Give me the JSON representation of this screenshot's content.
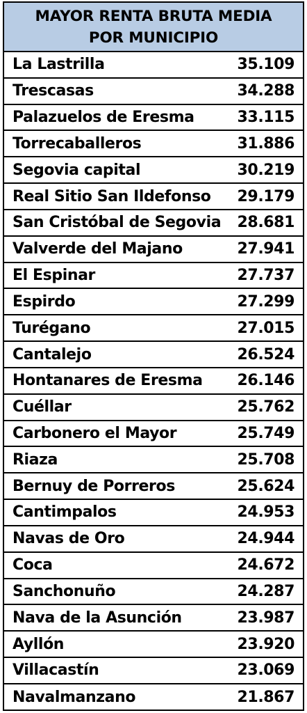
{
  "header": {
    "line1": "MAYOR RENTA BRUTA MEDIA",
    "line2": "POR MUNICIPIO"
  },
  "rows": [
    {
      "name": "La Lastrilla",
      "value": "35.109"
    },
    {
      "name": "Trescasas",
      "value": "34.288"
    },
    {
      "name": "Palazuelos de Eresma",
      "value": "33.115"
    },
    {
      "name": "Torrecaballeros",
      "value": "31.886"
    },
    {
      "name": "Segovia capital",
      "value": "30.219"
    },
    {
      "name": "Real Sitio San Ildefonso",
      "value": "29.179"
    },
    {
      "name": "San Cristóbal de Segovia",
      "value": "28.681"
    },
    {
      "name": "Valverde del Majano",
      "value": "27.941"
    },
    {
      "name": "El Espinar",
      "value": "27.737"
    },
    {
      "name": "Espirdo",
      "value": "27.299"
    },
    {
      "name": "Turégano",
      "value": "27.015"
    },
    {
      "name": "Cantalejo",
      "value": "26.524"
    },
    {
      "name": "Hontanares de Eresma",
      "value": "26.146"
    },
    {
      "name": "Cuéllar",
      "value": "25.762"
    },
    {
      "name": "Carbonero el Mayor",
      "value": "25.749"
    },
    {
      "name": "Riaza",
      "value": "25.708"
    },
    {
      "name": "Bernuy de Porreros",
      "value": "25.624"
    },
    {
      "name": "Cantimpalos",
      "value": "24.953"
    },
    {
      "name": "Navas de Oro",
      "value": "24.944"
    },
    {
      "name": "Coca",
      "value": "24.672"
    },
    {
      "name": "Sanchonuño",
      "value": "24.287"
    },
    {
      "name": "Nava de la Asunción",
      "value": "23.987"
    },
    {
      "name": "Ayllón",
      "value": "23.920"
    },
    {
      "name": "Villacastín",
      "value": "23.069"
    },
    {
      "name": "Navalmanzano",
      "value": "21.867"
    }
  ]
}
